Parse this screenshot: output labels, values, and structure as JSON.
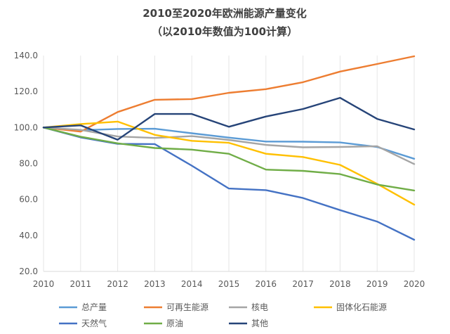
{
  "chart_data": {
    "type": "line",
    "title": "2010至2020年欧洲能源产量变化",
    "subtitle": "（以2010年数值为100计算）",
    "xlabel": "",
    "ylabel": "",
    "x": [
      "2010",
      "2011",
      "2012",
      "2013",
      "2014",
      "2015",
      "2016",
      "2017",
      "2018",
      "2019",
      "2020"
    ],
    "ylim": [
      20,
      140
    ],
    "yticks": [
      "20.0",
      "40.0",
      "60.0",
      "80.0",
      "100.0",
      "120.0",
      "140.0"
    ],
    "grid": "vertical",
    "legend": "bottom",
    "series": [
      {
        "name": "总产量",
        "color": "#5B9BD5",
        "values": [
          100,
          98.5,
          99.2,
          99.3,
          96.8,
          94.4,
          92.2,
          92.1,
          91.7,
          89.2,
          82.6
        ]
      },
      {
        "name": "可再生能源",
        "color": "#ED7D31",
        "values": [
          100,
          97.7,
          108.6,
          115.4,
          115.8,
          119.3,
          121.3,
          125.2,
          131.1,
          135.3,
          139.6
        ]
      },
      {
        "name": "核电",
        "color": "#A5A5A5",
        "values": [
          100,
          98.7,
          95,
          94.2,
          95.2,
          93.1,
          90.3,
          89,
          89.2,
          89.6,
          79.7
        ]
      },
      {
        "name": "固体化石能源",
        "color": "#FFC000",
        "values": [
          100,
          101.9,
          103.3,
          95.9,
          92.6,
          91.5,
          85.4,
          83.6,
          79.2,
          68.7,
          57.1
        ]
      },
      {
        "name": "天然气",
        "color": "#4472C4",
        "values": [
          100,
          94.5,
          90.9,
          90.8,
          78.8,
          66.1,
          65.2,
          60.8,
          54.1,
          47.7,
          37.6
        ]
      },
      {
        "name": "原油",
        "color": "#70AD47",
        "values": [
          100,
          94.9,
          91.2,
          88.6,
          87.7,
          85.4,
          76.6,
          75.9,
          74.1,
          68.3,
          65
        ]
      },
      {
        "name": "其他",
        "color": "#264478",
        "values": [
          100,
          101.2,
          93.2,
          107.5,
          107.5,
          100.4,
          106.1,
          110.3,
          116.5,
          104.8,
          98.9
        ]
      }
    ]
  }
}
